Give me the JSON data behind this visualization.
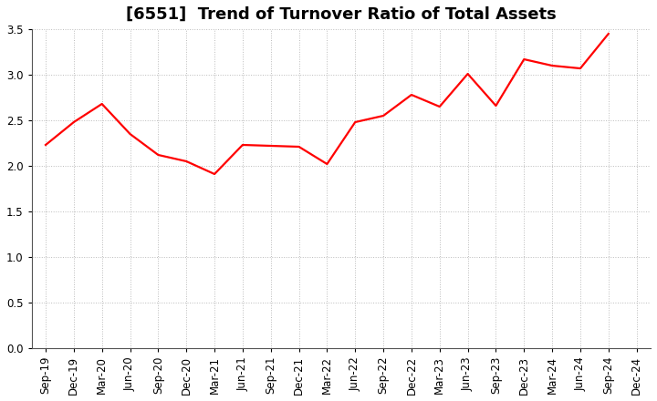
{
  "title": "[6551]  Trend of Turnover Ratio of Total Assets",
  "x_labels": [
    "Sep-19",
    "Dec-19",
    "Mar-20",
    "Jun-20",
    "Sep-20",
    "Dec-20",
    "Mar-21",
    "Jun-21",
    "Sep-21",
    "Dec-21",
    "Mar-22",
    "Jun-22",
    "Sep-22",
    "Dec-22",
    "Mar-23",
    "Jun-23",
    "Sep-23",
    "Dec-23",
    "Mar-24",
    "Jun-24",
    "Sep-24",
    "Dec-24"
  ],
  "y_values": [
    2.23,
    2.48,
    2.68,
    2.35,
    2.12,
    2.05,
    1.91,
    2.23,
    2.22,
    2.21,
    2.02,
    2.48,
    2.55,
    2.78,
    2.65,
    3.01,
    2.66,
    3.17,
    3.1,
    3.07,
    3.45,
    null
  ],
  "line_color": "#ff0000",
  "line_width": 1.6,
  "ylim": [
    0.0,
    3.5
  ],
  "yticks": [
    0.0,
    0.5,
    1.0,
    1.5,
    2.0,
    2.5,
    3.0,
    3.5
  ],
  "background_color": "#ffffff",
  "grid_color": "#bbbbbb",
  "title_fontsize": 13,
  "tick_fontsize": 8.5
}
